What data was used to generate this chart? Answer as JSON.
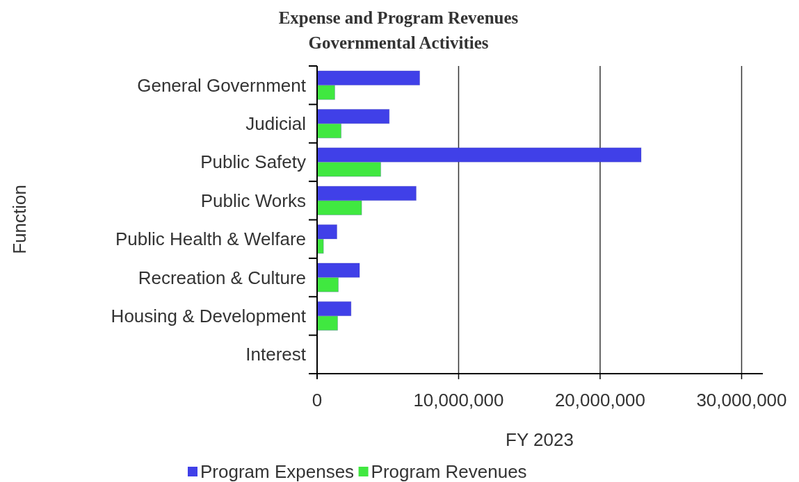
{
  "chart_data": {
    "type": "bar",
    "orientation": "horizontal",
    "title": "Expense and Program Revenues\nGovernmental Activities",
    "xlabel": "FY 2023",
    "ylabel": "Function",
    "categories": [
      "General Government",
      "Judicial",
      "Public Safety",
      "Public Works",
      "Public Health & Welfare",
      "Recreation & Culture",
      "Housing & Development",
      "Interest"
    ],
    "series": [
      {
        "name": "Program Expenses",
        "color": "#4040e8",
        "values": [
          7250000,
          5100000,
          22900000,
          7000000,
          1400000,
          3000000,
          2400000,
          0
        ]
      },
      {
        "name": "Program Revenues",
        "color": "#40e840",
        "values": [
          1250000,
          1700000,
          4500000,
          3150000,
          450000,
          1500000,
          1450000,
          0
        ]
      }
    ],
    "xlim": [
      0,
      31500000
    ],
    "xticks": [
      0,
      {
        "value": 10000000,
        "label": "10,000,000"
      },
      {
        "value": 20000000,
        "label": "20,000,000"
      },
      {
        "value": 30000000,
        "label": "30,000,000"
      }
    ],
    "grid": "x",
    "legend": "bottom"
  }
}
